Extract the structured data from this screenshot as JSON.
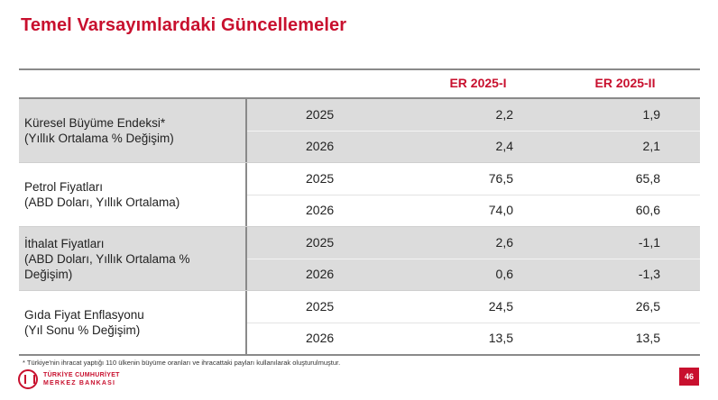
{
  "title": "Temel Varsayımlardaki Güncellemeler",
  "columns": [
    "ER 2025-I",
    "ER 2025-II"
  ],
  "groups": [
    {
      "label_line1": "Küresel Büyüme Endeksi*",
      "label_line2": "(Yıllık Ortalama % Değişim)",
      "label_line3": "",
      "rows": [
        {
          "year": "2025",
          "v1": "2,2",
          "v2": "1,9"
        },
        {
          "year": "2026",
          "v1": "2,4",
          "v2": "2,1"
        }
      ]
    },
    {
      "label_line1": "Petrol Fiyatları",
      "label_line2": "(ABD Doları, Yıllık Ortalama)",
      "label_line3": "",
      "rows": [
        {
          "year": "2025",
          "v1": "76,5",
          "v2": "65,8"
        },
        {
          "year": "2026",
          "v1": "74,0",
          "v2": "60,6"
        }
      ]
    },
    {
      "label_line1": "İthalat Fiyatları",
      "label_line2": "(ABD Doları, Yıllık Ortalama %",
      "label_line3": "Değişim)",
      "rows": [
        {
          "year": "2025",
          "v1": "2,6",
          "v2": "-1,1"
        },
        {
          "year": "2026",
          "v1": "0,6",
          "v2": "-1,3"
        }
      ]
    },
    {
      "label_line1": "Gıda Fiyat Enflasyonu",
      "label_line2": "(Yıl Sonu % Değişim)",
      "label_line3": "",
      "rows": [
        {
          "year": "2025",
          "v1": "24,5",
          "v2": "26,5"
        },
        {
          "year": "2026",
          "v1": "13,5",
          "v2": "13,5"
        }
      ]
    }
  ],
  "footnote": "* Türkiye'nin ihracat yaptığı 110 ülkenin büyüme oranları ve ihracattaki payları kullanılarak oluşturulmuştur.",
  "logo": {
    "line1": "TÜRKİYE CUMHURİYET",
    "line2": "MERKEZ BANKASI"
  },
  "page_number": "46",
  "colors": {
    "accent": "#c8102e",
    "shade": "#dcdcdc"
  }
}
